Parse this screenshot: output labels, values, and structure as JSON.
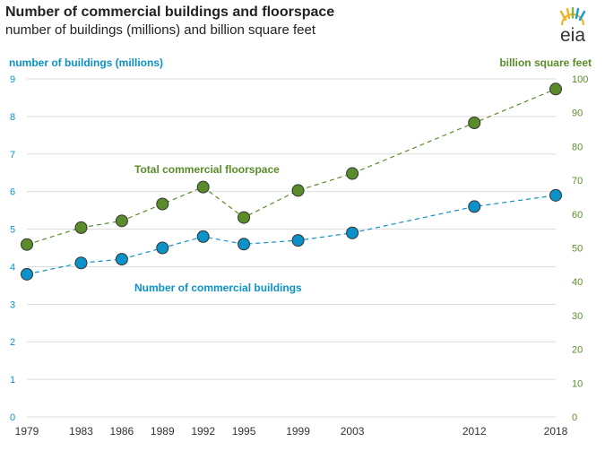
{
  "header": {
    "title": "Number of commercial buildings and floorspace",
    "subtitle": "number of buildings (millions) and billion square feet",
    "logo_text": "eia"
  },
  "colors": {
    "buildings": "#0b93c9",
    "floorspace": "#5a8c2a",
    "grid": "#dddddd"
  },
  "chart_data": {
    "type": "line",
    "title": "Number of commercial buildings and floorspace",
    "subtitle": "number of buildings (millions) and billion square feet",
    "categories": [
      "1979",
      "1983",
      "1986",
      "1989",
      "1992",
      "1995",
      "1999",
      "2003",
      "2012",
      "2018"
    ],
    "x": [
      1979,
      1983,
      1986,
      1989,
      1992,
      1995,
      1999,
      2003,
      2012,
      2018
    ],
    "y_left": {
      "label": "number of buildings (millions)",
      "range": [
        0,
        9
      ],
      "ticks": [
        "0",
        "1",
        "2",
        "3",
        "4",
        "5",
        "6",
        "7",
        "8",
        "9"
      ]
    },
    "y_right": {
      "label": "billion square feet",
      "range": [
        0,
        100
      ],
      "ticks": [
        "0",
        "10",
        "20",
        "30",
        "40",
        "50",
        "60",
        "70",
        "80",
        "90",
        "100"
      ]
    },
    "series": [
      {
        "name": "Number of commercial buildings",
        "axis": "left",
        "color": "#0b93c9",
        "values": [
          3.8,
          4.1,
          4.2,
          4.5,
          4.8,
          4.6,
          4.7,
          4.9,
          5.6,
          5.9
        ]
      },
      {
        "name": "Total commercial floorspace",
        "axis": "right",
        "color": "#5a8c2a",
        "values": [
          51,
          56,
          58,
          63,
          68,
          59,
          67,
          72,
          87,
          97
        ]
      }
    ],
    "annotations": [
      "Total commercial floorspace",
      "Number of commercial buildings"
    ],
    "grid": true,
    "legend": "none"
  }
}
